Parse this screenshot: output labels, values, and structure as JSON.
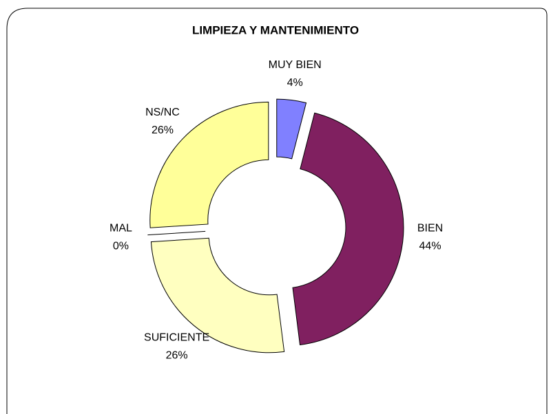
{
  "chart_data": {
    "type": "donut",
    "title": "LIMPIEZA Y MANTENIMIENTO",
    "categories": [
      "MUY BIEN",
      "BIEN",
      "SUFICIENTE",
      "MAL",
      "NS/NC"
    ],
    "values": [
      4,
      44,
      26,
      0,
      26
    ],
    "value_labels": [
      "4%",
      "44%",
      "26%",
      "0%",
      "26%"
    ],
    "colors": [
      "#8080ff",
      "#802060",
      "#ffffc0",
      "#a0a0a0",
      "#ffff99"
    ]
  }
}
